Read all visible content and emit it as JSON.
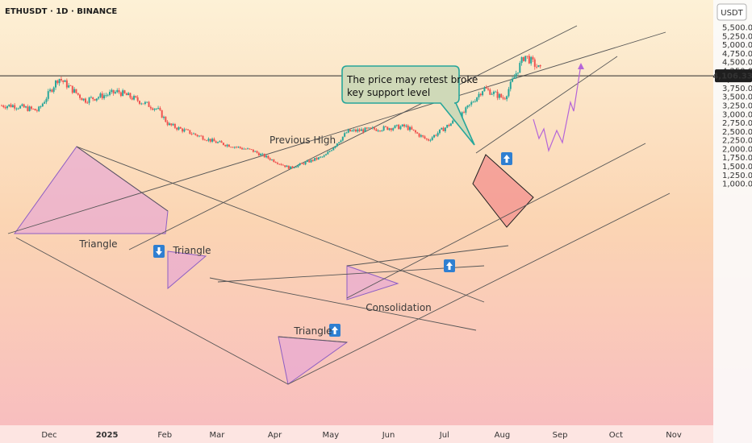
{
  "header": {
    "symbol": "ETHUSDT · 1D · BINANCE",
    "currency_button": "USDT"
  },
  "colors": {
    "up": "#26a69a",
    "down": "#ef5350",
    "pattern_fill": "#e7a6d6",
    "pattern_edge": "#8e5fc4",
    "box_fill": "#f28b8b",
    "box_edge": "#202020",
    "callout_fill": "#cfd9b8",
    "callout_edge": "#26a69a",
    "arrow_fill": "#2f7fd1",
    "trend_line": "#555555",
    "projection": "#b565d8"
  },
  "price_label": "4,106.33",
  "callout": {
    "line1": "The price may retest broke",
    "line2": "key support level"
  },
  "annotations": {
    "previous_high": "Previous High",
    "triangle_1": "Triangle",
    "triangle_2": "Triangle",
    "triangle_3": "Triangle",
    "consolidation": "Consolidation"
  },
  "chart_data": {
    "type": "candlestick",
    "y_tick_labels": [
      "5,500.00",
      "5,250.00",
      "5,000.00",
      "4,750.00",
      "4,500.00",
      "4,250.00",
      "4,000.00",
      "3,750.00",
      "3,500.00",
      "3,250.00",
      "3,000.00",
      "2,750.00",
      "2,500.00",
      "2,250.00",
      "2,000.00",
      "1,750.00",
      "1,500.00",
      "1,250.00",
      "1,000.00"
    ],
    "x_tick_labels": [
      "Dec",
      "2025",
      "Feb",
      "Mar",
      "Apr",
      "May",
      "Jun",
      "Jul",
      "Aug",
      "Sep",
      "Oct",
      "Nov"
    ],
    "previous_high_level": 4106.33,
    "key_points": [
      {
        "date": "2024-11-12",
        "close": 3250
      },
      {
        "date": "2024-11-25",
        "close": 3100
      },
      {
        "date": "2024-12-06",
        "close": 4050
      },
      {
        "date": "2024-12-20",
        "close": 3400
      },
      {
        "date": "2025-01-07",
        "close": 3650
      },
      {
        "date": "2025-01-28",
        "close": 3150
      },
      {
        "date": "2025-02-03",
        "close": 2700
      },
      {
        "date": "2025-02-28",
        "close": 2200
      },
      {
        "date": "2025-03-20",
        "close": 1950
      },
      {
        "date": "2025-04-09",
        "close": 1450
      },
      {
        "date": "2025-04-28",
        "close": 1800
      },
      {
        "date": "2025-05-10",
        "close": 2500
      },
      {
        "date": "2025-06-10",
        "close": 2650
      },
      {
        "date": "2025-06-22",
        "close": 2250
      },
      {
        "date": "2025-07-10",
        "close": 2950
      },
      {
        "date": "2025-07-22",
        "close": 3750
      },
      {
        "date": "2025-08-02",
        "close": 3450
      },
      {
        "date": "2025-08-13",
        "close": 4700
      },
      {
        "date": "2025-08-22",
        "close": 4250
      }
    ]
  }
}
